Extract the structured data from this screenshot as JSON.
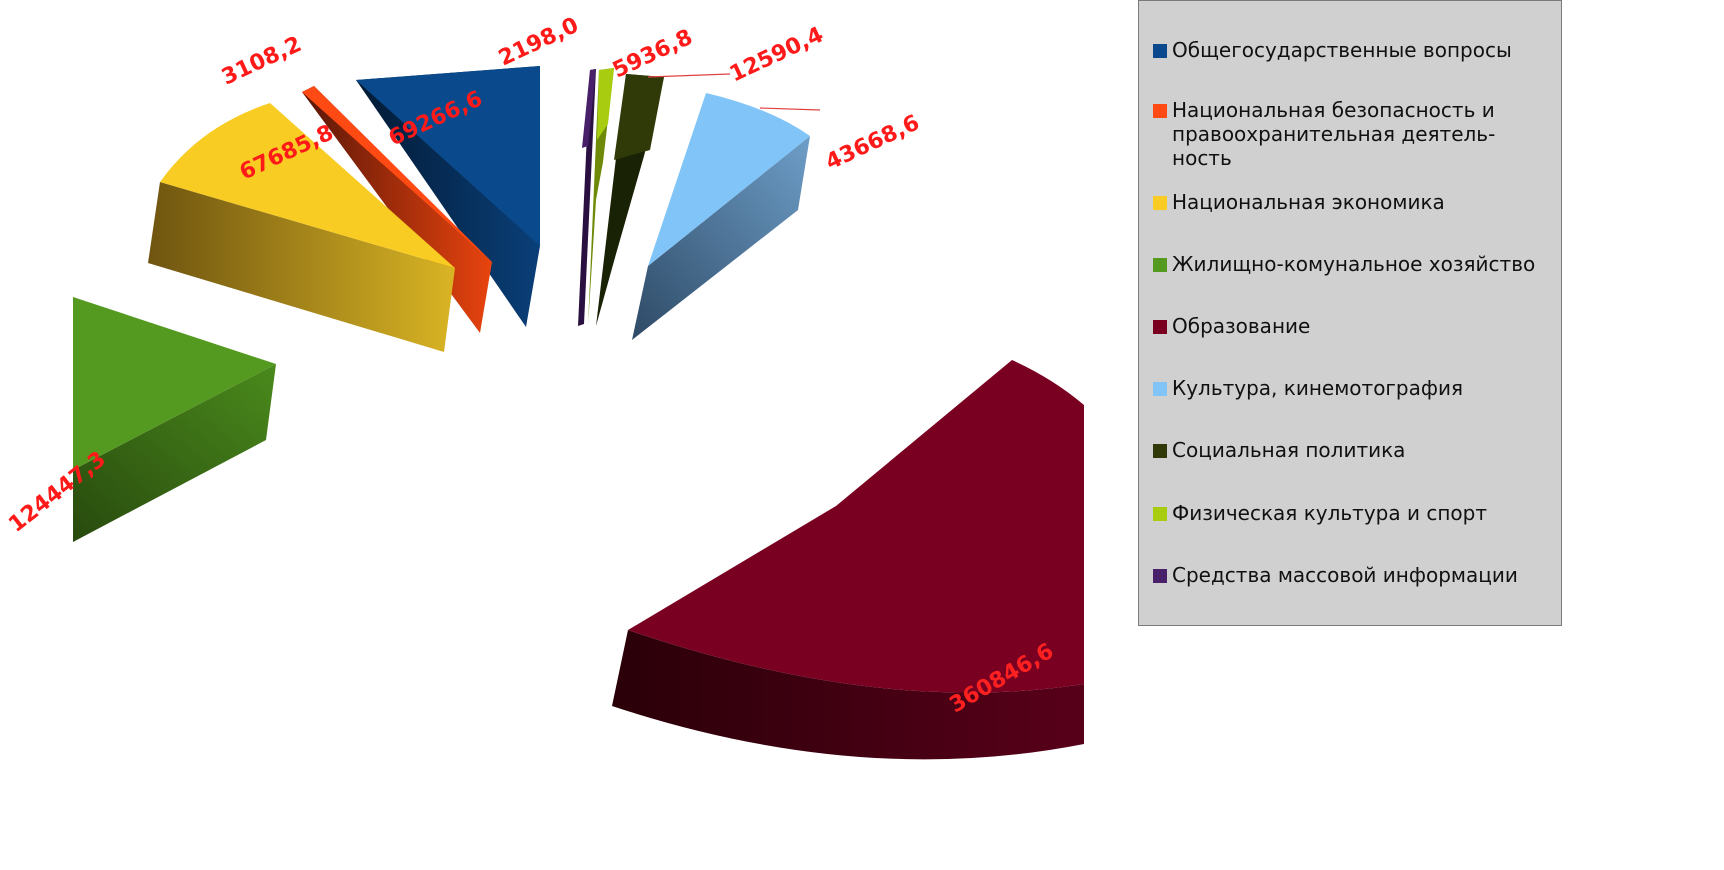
{
  "chart_data": {
    "type": "pie",
    "style": "3d-exploded",
    "title": "",
    "legend_position": "right",
    "slices": [
      {
        "name": "Общегосударственные вопросы",
        "value": 69266.6,
        "label": "69266,6",
        "color": "#0a4a8c"
      },
      {
        "name": "Национальная безопасность и правоохранительная деятельность",
        "legend_lines": [
          "Национальная безопасность и",
          "правоохранительная деятель-",
          "ность"
        ],
        "value": 3108.2,
        "label": "3108,2",
        "color": "#ff4a14"
      },
      {
        "name": "Национальная экономика",
        "value": 67685.8,
        "label": "67685,8",
        "color": "#f8cc22"
      },
      {
        "name": "Жилищно-комунальное хозяйство",
        "value": 124447.3,
        "label": "124447,3",
        "color": "#559a20"
      },
      {
        "name": "Образование",
        "value": 360846.6,
        "label": "360846,6",
        "color": "#7a0022"
      },
      {
        "name": "Культура, кинемотография",
        "value": 43668.6,
        "label": "43668,6",
        "color": "#80c4f8"
      },
      {
        "name": "Социальная политика",
        "value": 12590.4,
        "label": "12590,4",
        "color": "#2f3a08"
      },
      {
        "name": "Физическая культура и спорт",
        "value": 5936.8,
        "label": "5936,8",
        "color": "#a8cc10"
      },
      {
        "name": "Средства массовой информации",
        "value": 2198.0,
        "label": "2198,0",
        "color": "#48206a"
      }
    ]
  }
}
